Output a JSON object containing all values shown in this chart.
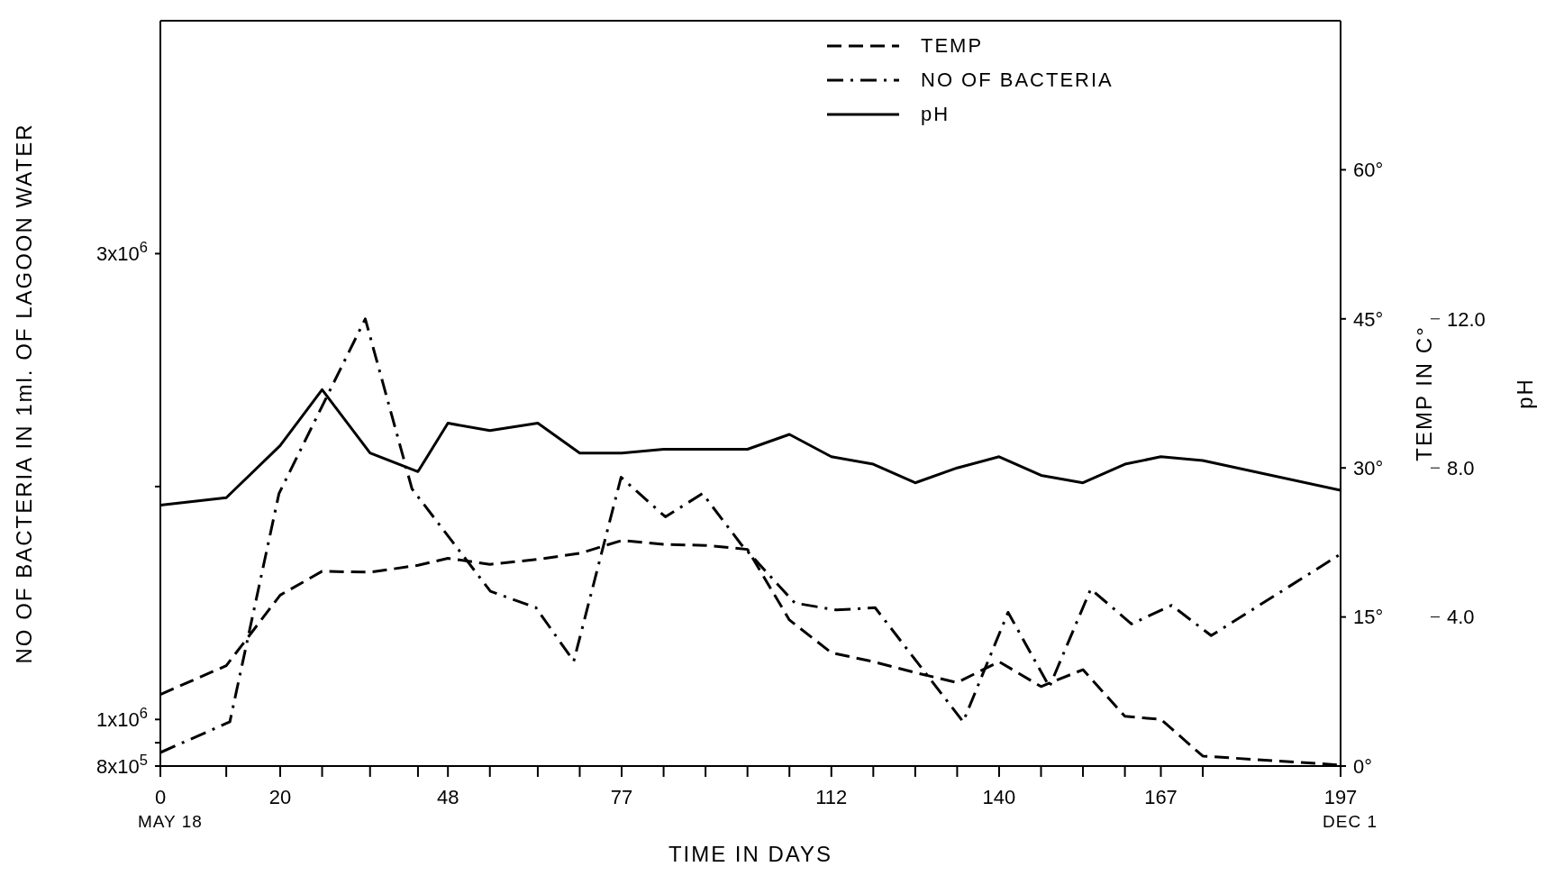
{
  "chart_data": {
    "type": "line",
    "xlabel": "TIME IN DAYS",
    "ylabel": "NO OF BACTERIA IN 1ml. OF LAGOON WATER",
    "y2label": "TEMP IN C°",
    "y3label": "pH",
    "xlim": [
      0,
      197
    ],
    "xticks": [
      0,
      {
        "value": 11,
        "label": null
      },
      20,
      {
        "value": 27,
        "label": null
      },
      {
        "value": 35,
        "label": null
      },
      {
        "value": 43,
        "label": null
      },
      48,
      {
        "value": 55,
        "label": null
      },
      {
        "value": 63,
        "label": null
      },
      {
        "value": 70,
        "label": null
      },
      77,
      {
        "value": 84,
        "label": null
      },
      {
        "value": 91,
        "label": null
      },
      {
        "value": 98,
        "label": null
      },
      {
        "value": 105,
        "label": null
      },
      112,
      {
        "value": 119,
        "label": null
      },
      {
        "value": 126,
        "label": null
      },
      {
        "value": 133,
        "label": null
      },
      140,
      {
        "value": 147,
        "label": null
      },
      {
        "value": 154,
        "label": null
      },
      {
        "value": 161,
        "label": null
      },
      167,
      {
        "value": 174,
        "label": null
      },
      197
    ],
    "annotations": [
      "MAY 18",
      "DEC 1"
    ],
    "ylim": [
      800000,
      4000000
    ],
    "yticks": [
      {
        "value": 800000,
        "label": "8x10$^{5}$"
      },
      {
        "value": 900000,
        "label": null
      },
      {
        "value": 1000000,
        "label": "1x10$^{6}$"
      },
      {
        "value": 2000000,
        "label": null
      },
      {
        "value": 3000000,
        "label": "3x10$^{6}$"
      }
    ],
    "y2lim": [
      0,
      75
    ],
    "y2ticks": [
      {
        "value": 0,
        "label": "0°"
      },
      {
        "value": 15,
        "label": "15°"
      },
      {
        "value": 30,
        "label": "30°"
      },
      {
        "value": 45,
        "label": "45°"
      },
      {
        "value": 60,
        "label": "60°"
      }
    ],
    "y3lim": [
      0,
      20
    ],
    "y3ticks": [
      {
        "value": 4,
        "label": "4.0"
      },
      {
        "value": 8,
        "label": "8.0"
      },
      {
        "value": 12,
        "label": "12.0"
      }
    ],
    "x": [
      0,
      11,
      20,
      27,
      35,
      43,
      48,
      55,
      63,
      70,
      77,
      84,
      91,
      98,
      105,
      112,
      119,
      126,
      133,
      140,
      147,
      154,
      161,
      167,
      174,
      197
    ],
    "series": [
      {
        "name": "TEMP",
        "color": "#000000",
        "axis": "y2",
        "line_style": "dashed",
        "values": [
          7.2,
          10.1,
          17.2,
          19.6,
          19.5,
          20.2,
          20.9,
          20.3,
          20.8,
          21.4,
          22.7,
          22.3,
          22.2,
          21.8,
          14.7,
          11.4,
          10.5,
          9.4,
          8.4,
          10.5,
          8.0,
          9.7,
          5.0,
          4.7,
          1.0,
          0.1
        ]
      },
      {
        "name": "NO OF BACTERIA",
        "color": "#000000",
        "line_style": "dashdot",
        "x": [
          0,
          11.6,
          19.8,
          34.2,
          42,
          55.1,
          62.7,
          69,
          76.9,
          84.3,
          90.5,
          97,
          105.9,
          112.8,
          119.3,
          134,
          141.5,
          148.4,
          155.3,
          162.1,
          168.8,
          175.4,
          197
        ],
        "values": [
          858000,
          990000,
          1970000,
          2720000,
          1990000,
          1550000,
          1480000,
          1250000,
          2040000,
          1870000,
          1970000,
          1750000,
          1500000,
          1470000,
          1480000,
          990000,
          1460000,
          1140000,
          1560000,
          1410000,
          1490000,
          1360000,
          1710000
        ]
      },
      {
        "name": "pH",
        "color": "#000000",
        "axis": "y3",
        "line_style": "solid",
        "values": [
          7.0,
          7.2,
          8.6,
          10.1,
          8.4,
          7.9,
          9.2,
          9.0,
          9.2,
          8.4,
          8.4,
          8.5,
          8.5,
          8.5,
          8.9,
          8.3,
          8.1,
          7.6,
          8.0,
          8.3,
          7.8,
          7.6,
          8.1,
          8.3,
          8.2,
          7.4
        ]
      }
    ],
    "legend": "top",
    "grid": false
  }
}
